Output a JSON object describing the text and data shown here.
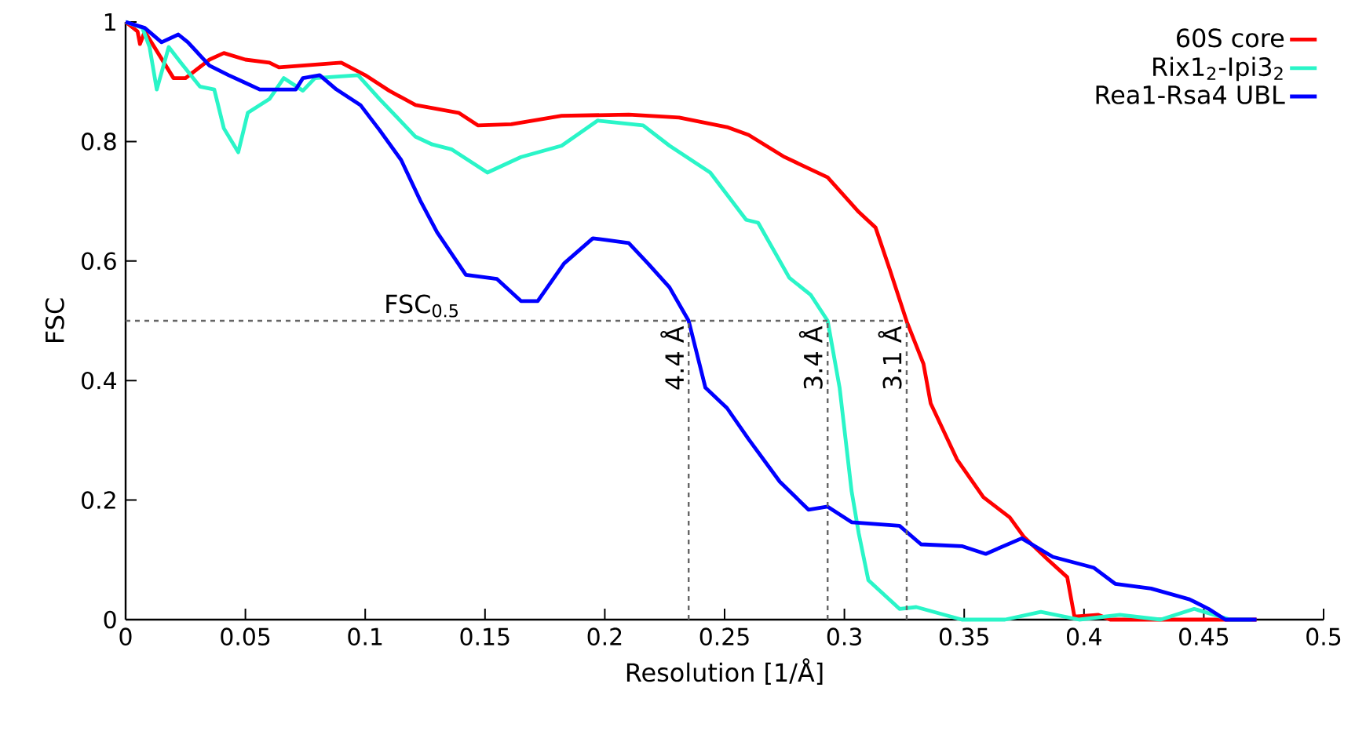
{
  "chart_data": {
    "type": "line",
    "xlabel": "Resolution [1/Å]",
    "ylabel": "FSC",
    "xlim": [
      0,
      0.5
    ],
    "ylim": [
      0,
      1
    ],
    "xticks": [
      0,
      0.05,
      0.1,
      0.15,
      0.2,
      0.25,
      0.3,
      0.35,
      0.4,
      0.45,
      0.5
    ],
    "yticks": [
      0,
      0.2,
      0.4,
      0.6,
      0.8,
      1
    ],
    "grid": false,
    "legend": "top right",
    "marker": "none",
    "line_style": "solid",
    "series": [
      {
        "name": "60S core",
        "color": "#ff0000",
        "x": [
          0,
          0.005,
          0.006,
          0.008,
          0.02,
          0.025,
          0.035,
          0.041,
          0.05,
          0.06,
          0.064,
          0.09,
          0.1,
          0.11,
          0.121,
          0.139,
          0.147,
          0.161,
          0.182,
          0.21,
          0.231,
          0.251,
          0.26,
          0.275,
          0.293,
          0.306,
          0.313,
          0.319,
          0.326,
          0.333,
          0.336,
          0.347,
          0.358,
          0.369,
          0.375,
          0.385,
          0.393,
          0.396,
          0.406,
          0.411,
          0.428,
          0.45,
          0.472
        ],
        "values": [
          1,
          0.984,
          0.963,
          0.984,
          0.906,
          0.906,
          0.937,
          0.948,
          0.937,
          0.932,
          0.924,
          0.932,
          0.911,
          0.885,
          0.861,
          0.848,
          0.827,
          0.829,
          0.843,
          0.845,
          0.84,
          0.824,
          0.811,
          0.774,
          0.74,
          0.682,
          0.656,
          0.585,
          0.499,
          0.428,
          0.362,
          0.268,
          0.205,
          0.171,
          0.138,
          0.1,
          0.071,
          0.005,
          0.008,
          0,
          0,
          0,
          0
        ]
      },
      {
        "name": "Rix1$_{2}$-Ipi3$_{2}$",
        "color": "#2af5c8",
        "x": [
          0,
          0.007,
          0.01,
          0.013,
          0.018,
          0.023,
          0.031,
          0.037,
          0.041,
          0.047,
          0.051,
          0.06,
          0.066,
          0.074,
          0.079,
          0.097,
          0.106,
          0.121,
          0.128,
          0.136,
          0.151,
          0.165,
          0.182,
          0.197,
          0.216,
          0.227,
          0.244,
          0.259,
          0.264,
          0.277,
          0.286,
          0.293,
          0.298,
          0.303,
          0.306,
          0.31,
          0.323,
          0.33,
          0.349,
          0.367,
          0.382,
          0.398,
          0.415,
          0.432,
          0.446,
          0.461,
          0.47
        ],
        "values": [
          1,
          0.99,
          0.958,
          0.887,
          0.958,
          0.932,
          0.892,
          0.887,
          0.822,
          0.782,
          0.848,
          0.871,
          0.906,
          0.885,
          0.906,
          0.911,
          0.871,
          0.808,
          0.795,
          0.787,
          0.748,
          0.774,
          0.793,
          0.835,
          0.827,
          0.793,
          0.748,
          0.669,
          0.664,
          0.572,
          0.543,
          0.5,
          0.388,
          0.215,
          0.144,
          0.066,
          0.018,
          0.021,
          0,
          0,
          0.013,
          0,
          0.008,
          0,
          0.018,
          0,
          0
        ]
      },
      {
        "name": "Rea1-Rsa4 UBL",
        "color": "#0000ff",
        "x": [
          0,
          0.008,
          0.015,
          0.022,
          0.026,
          0.035,
          0.043,
          0.049,
          0.056,
          0.071,
          0.074,
          0.081,
          0.088,
          0.098,
          0.106,
          0.115,
          0.123,
          0.13,
          0.142,
          0.155,
          0.165,
          0.172,
          0.183,
          0.195,
          0.201,
          0.21,
          0.218,
          0.227,
          0.235,
          0.242,
          0.251,
          0.26,
          0.273,
          0.285,
          0.293,
          0.303,
          0.323,
          0.332,
          0.349,
          0.359,
          0.374,
          0.387,
          0.404,
          0.413,
          0.428,
          0.444,
          0.452,
          0.459,
          0.472
        ],
        "values": [
          1,
          0.99,
          0.966,
          0.979,
          0.966,
          0.927,
          0.911,
          0.9,
          0.887,
          0.887,
          0.906,
          0.911,
          0.887,
          0.861,
          0.819,
          0.769,
          0.701,
          0.648,
          0.577,
          0.57,
          0.533,
          0.533,
          0.596,
          0.638,
          0.635,
          0.63,
          0.596,
          0.556,
          0.5,
          0.388,
          0.354,
          0.302,
          0.231,
          0.184,
          0.189,
          0.163,
          0.157,
          0.126,
          0.123,
          0.11,
          0.136,
          0.105,
          0.087,
          0.06,
          0.052,
          0.034,
          0.018,
          0,
          0
        ]
      }
    ],
    "ref_lines": [
      {
        "axis": "y",
        "value": 0.5,
        "label": "FSC$_{0.5}$",
        "color": "#666666",
        "line_style": "dashed"
      },
      {
        "axis": "x",
        "value": 0.235,
        "label": "4.4 Å",
        "color": "#666666",
        "line_style": "dashed"
      },
      {
        "axis": "x",
        "value": 0.293,
        "label": "3.4 Å",
        "color": "#666666",
        "line_style": "dashed"
      },
      {
        "axis": "x",
        "value": 0.326,
        "label": "3.1 Å",
        "color": "#666666",
        "line_style": "dashed"
      }
    ]
  }
}
